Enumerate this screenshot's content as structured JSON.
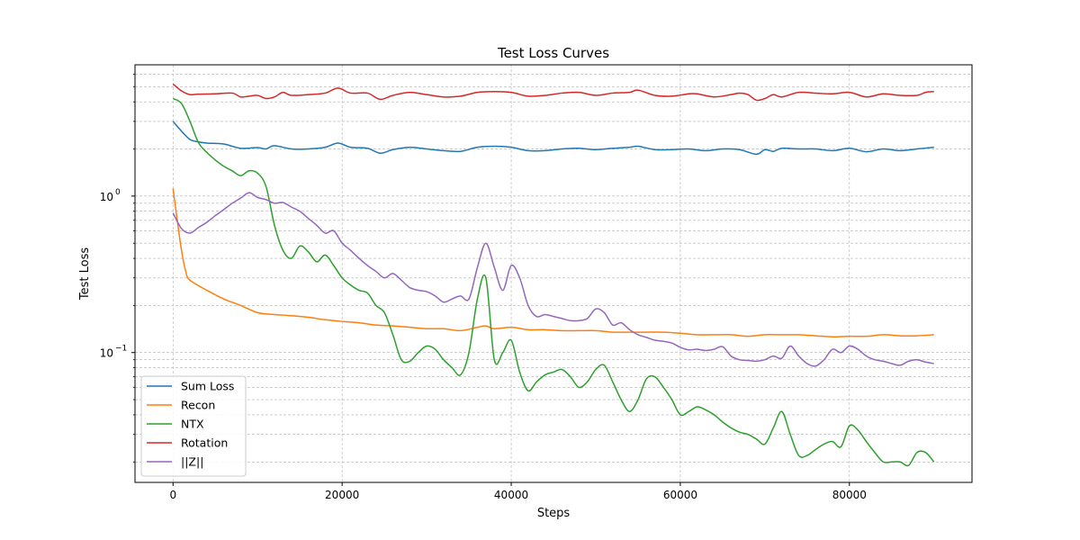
{
  "chart_data": {
    "type": "line",
    "title": "Test Loss Curves",
    "xlabel": "Steps",
    "ylabel": "Test Loss",
    "yscale": "log",
    "xlim": [
      -4500,
      94500
    ],
    "ylim": [
      0.0148,
      6.9
    ],
    "grid": true,
    "legend_position": "lower-left",
    "x_ticks": [
      0,
      20000,
      40000,
      60000,
      80000
    ],
    "x_tick_labels": [
      "0",
      "20000",
      "40000",
      "60000",
      "80000"
    ],
    "y_major_ticks": [
      0.1,
      1
    ],
    "y_major_tick_labels": {
      "base": "10",
      "exponents": [
        "−1",
        "0"
      ]
    },
    "y_minor_ticks": [
      0.02,
      0.03,
      0.04,
      0.05,
      0.06,
      0.07,
      0.08,
      0.09,
      0.2,
      0.3,
      0.4,
      0.5,
      0.6,
      0.7,
      0.8,
      0.9,
      2,
      3,
      4,
      5,
      6
    ],
    "series": [
      {
        "name": "Sum Loss",
        "color": "#1f77b4",
        "x": [
          0,
          1000,
          2000,
          3000,
          4000,
          6000,
          8000,
          10000,
          11000,
          12000,
          14000,
          16000,
          18000,
          19500,
          21000,
          23000,
          24500,
          26000,
          28000,
          30000,
          32000,
          34000,
          36000,
          38000,
          40000,
          42000,
          44000,
          46000,
          48000,
          50000,
          52000,
          54000,
          55000,
          57000,
          59000,
          61000,
          63000,
          65000,
          67000,
          69000,
          70000,
          71000,
          72000,
          74000,
          76000,
          78000,
          80000,
          82000,
          84000,
          86000,
          88000,
          90000
        ],
        "y": [
          3.0,
          2.6,
          2.3,
          2.22,
          2.18,
          2.15,
          2.02,
          2.04,
          2.0,
          2.1,
          2.0,
          2.0,
          2.05,
          2.18,
          2.05,
          2.02,
          1.88,
          1.98,
          2.05,
          2.0,
          1.95,
          1.93,
          2.05,
          2.08,
          2.05,
          1.95,
          1.95,
          2.0,
          2.02,
          1.98,
          2.02,
          2.05,
          2.08,
          1.98,
          1.98,
          2.0,
          1.95,
          2.0,
          1.98,
          1.85,
          1.98,
          1.93,
          2.02,
          2.0,
          2.0,
          1.95,
          2.02,
          1.92,
          2.0,
          1.95,
          2.0,
          2.05
        ]
      },
      {
        "name": "Recon",
        "color": "#ff7f0e",
        "x": [
          0,
          500,
          1000,
          1500,
          2000,
          4000,
          6000,
          8000,
          10000,
          12000,
          14000,
          16000,
          18000,
          20000,
          22000,
          24000,
          26000,
          28000,
          30000,
          32000,
          34000,
          36000,
          37000,
          38000,
          40000,
          42000,
          44000,
          46000,
          48000,
          50000,
          52000,
          54000,
          56000,
          58000,
          60000,
          62000,
          64000,
          66000,
          68000,
          70000,
          72000,
          74000,
          76000,
          78000,
          80000,
          82000,
          84000,
          86000,
          88000,
          90000
        ],
        "y": [
          1.12,
          0.7,
          0.45,
          0.33,
          0.29,
          0.25,
          0.22,
          0.2,
          0.18,
          0.175,
          0.172,
          0.168,
          0.162,
          0.158,
          0.155,
          0.15,
          0.148,
          0.145,
          0.142,
          0.142,
          0.138,
          0.145,
          0.148,
          0.142,
          0.145,
          0.14,
          0.14,
          0.138,
          0.138,
          0.138,
          0.135,
          0.135,
          0.135,
          0.135,
          0.133,
          0.13,
          0.13,
          0.13,
          0.127,
          0.13,
          0.13,
          0.13,
          0.128,
          0.126,
          0.127,
          0.127,
          0.13,
          0.128,
          0.128,
          0.13
        ]
      },
      {
        "name": "NTX",
        "color": "#2ca02c",
        "x": [
          0,
          1000,
          2000,
          3000,
          4000,
          5000,
          6000,
          7000,
          8000,
          9000,
          10000,
          11000,
          12000,
          13000,
          14000,
          15000,
          16000,
          17000,
          18000,
          19000,
          20000,
          21000,
          22000,
          23000,
          24000,
          25000,
          26000,
          27000,
          28000,
          29000,
          30000,
          31000,
          32000,
          33000,
          34000,
          35000,
          36000,
          37000,
          38000,
          39000,
          40000,
          41000,
          42000,
          43000,
          44000,
          45000,
          46000,
          47000,
          48000,
          49000,
          50000,
          51000,
          52000,
          53000,
          54000,
          55000,
          56000,
          57000,
          58000,
          59000,
          60000,
          61000,
          62000,
          63000,
          64000,
          65000,
          66000,
          67000,
          68000,
          69000,
          70000,
          71000,
          72000,
          73000,
          74000,
          75000,
          76000,
          77000,
          78000,
          79000,
          80000,
          81000,
          82000,
          83000,
          84000,
          85000,
          86000,
          87000,
          88000,
          89000,
          90000
        ],
        "y": [
          4.2,
          3.9,
          3.0,
          2.2,
          1.9,
          1.7,
          1.55,
          1.45,
          1.35,
          1.45,
          1.4,
          1.15,
          0.65,
          0.45,
          0.4,
          0.48,
          0.44,
          0.38,
          0.42,
          0.36,
          0.3,
          0.27,
          0.25,
          0.24,
          0.2,
          0.18,
          0.13,
          0.09,
          0.088,
          0.1,
          0.11,
          0.105,
          0.09,
          0.08,
          0.072,
          0.1,
          0.22,
          0.3,
          0.09,
          0.1,
          0.12,
          0.075,
          0.057,
          0.065,
          0.072,
          0.075,
          0.078,
          0.07,
          0.06,
          0.065,
          0.078,
          0.083,
          0.065,
          0.05,
          0.042,
          0.05,
          0.068,
          0.07,
          0.06,
          0.05,
          0.04,
          0.042,
          0.045,
          0.043,
          0.04,
          0.036,
          0.033,
          0.031,
          0.03,
          0.028,
          0.026,
          0.033,
          0.042,
          0.03,
          0.022,
          0.022,
          0.024,
          0.026,
          0.027,
          0.025,
          0.034,
          0.032,
          0.027,
          0.023,
          0.02,
          0.02,
          0.02,
          0.019,
          0.023,
          0.023,
          0.02
        ]
      },
      {
        "name": "Rotation",
        "color": "#d62728",
        "x": [
          0,
          1000,
          2000,
          3000,
          5000,
          7000,
          8000,
          9000,
          10000,
          11000,
          12000,
          13000,
          14000,
          16000,
          18000,
          19500,
          21000,
          23000,
          24500,
          26000,
          28000,
          30000,
          32000,
          34000,
          36000,
          38000,
          40000,
          42000,
          44000,
          46000,
          48000,
          50000,
          52000,
          54000,
          55000,
          57000,
          59000,
          61000,
          62000,
          64000,
          66000,
          67000,
          68000,
          69000,
          70000,
          71000,
          72000,
          74000,
          76000,
          78000,
          80000,
          82000,
          84000,
          86000,
          88000,
          89000,
          90000
        ],
        "y": [
          5.2,
          4.7,
          4.45,
          4.48,
          4.5,
          4.55,
          4.3,
          4.35,
          4.4,
          4.2,
          4.3,
          4.6,
          4.4,
          4.45,
          4.55,
          4.9,
          4.55,
          4.55,
          4.15,
          4.4,
          4.6,
          4.45,
          4.3,
          4.35,
          4.6,
          4.65,
          4.6,
          4.35,
          4.4,
          4.55,
          4.6,
          4.4,
          4.55,
          4.6,
          4.75,
          4.4,
          4.35,
          4.5,
          4.5,
          4.3,
          4.45,
          4.55,
          4.45,
          4.1,
          4.2,
          4.45,
          4.3,
          4.6,
          4.55,
          4.5,
          4.6,
          4.3,
          4.5,
          4.4,
          4.4,
          4.6,
          4.65
        ]
      },
      {
        "name": "||Z||",
        "color": "#9467bd",
        "x": [
          0,
          1000,
          2000,
          3000,
          4000,
          5000,
          6000,
          7000,
          8000,
          9000,
          10000,
          11000,
          12000,
          13000,
          14000,
          15000,
          16000,
          17000,
          18000,
          19000,
          20000,
          21000,
          22000,
          23000,
          24000,
          25000,
          26000,
          27000,
          28000,
          29000,
          30000,
          31000,
          32000,
          33000,
          34000,
          35000,
          36000,
          37000,
          38000,
          39000,
          40000,
          41000,
          42000,
          43000,
          44000,
          45000,
          46000,
          47000,
          48000,
          49000,
          50000,
          51000,
          52000,
          53000,
          54000,
          55000,
          56000,
          57000,
          58000,
          59000,
          60000,
          61000,
          62000,
          63000,
          64000,
          65000,
          66000,
          67000,
          68000,
          69000,
          70000,
          71000,
          72000,
          73000,
          74000,
          75000,
          76000,
          77000,
          78000,
          79000,
          80000,
          81000,
          82000,
          83000,
          84000,
          85000,
          86000,
          87000,
          88000,
          89000,
          90000
        ],
        "y": [
          0.78,
          0.62,
          0.58,
          0.63,
          0.68,
          0.75,
          0.82,
          0.9,
          0.97,
          1.05,
          0.98,
          0.95,
          0.9,
          0.91,
          0.85,
          0.8,
          0.72,
          0.65,
          0.58,
          0.6,
          0.5,
          0.45,
          0.4,
          0.36,
          0.33,
          0.3,
          0.32,
          0.29,
          0.26,
          0.25,
          0.245,
          0.23,
          0.21,
          0.22,
          0.23,
          0.22,
          0.35,
          0.5,
          0.35,
          0.25,
          0.36,
          0.3,
          0.2,
          0.17,
          0.175,
          0.17,
          0.165,
          0.16,
          0.16,
          0.165,
          0.19,
          0.18,
          0.15,
          0.155,
          0.14,
          0.13,
          0.125,
          0.12,
          0.118,
          0.115,
          0.108,
          0.104,
          0.105,
          0.103,
          0.105,
          0.109,
          0.095,
          0.09,
          0.089,
          0.088,
          0.09,
          0.095,
          0.092,
          0.11,
          0.095,
          0.085,
          0.082,
          0.09,
          0.105,
          0.1,
          0.11,
          0.105,
          0.095,
          0.09,
          0.088,
          0.085,
          0.083,
          0.088,
          0.09,
          0.087,
          0.085
        ]
      }
    ]
  }
}
